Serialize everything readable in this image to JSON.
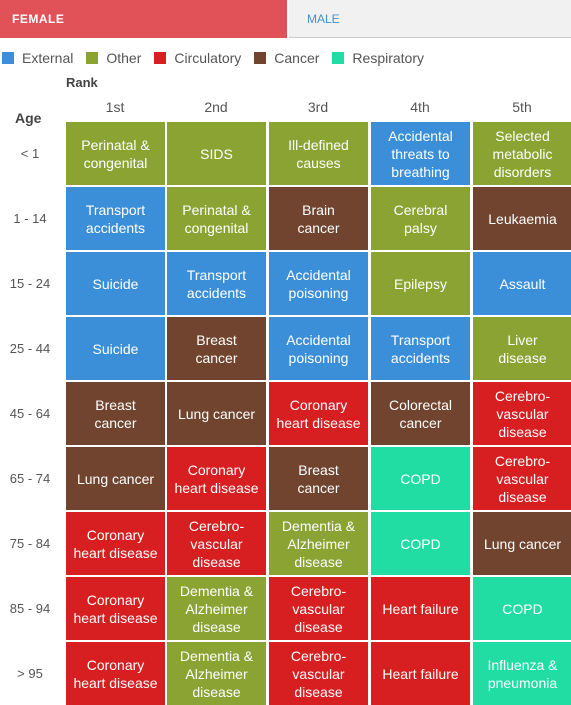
{
  "tabs": {
    "female": "FEMALE",
    "male": "MALE"
  },
  "colors": {
    "External": "#3b8fd9",
    "Other": "#8ba333",
    "Circulatory": "#d71e21",
    "Cancer": "#70442e",
    "Respiratory": "#22dda3"
  },
  "legend": [
    {
      "key": "External",
      "label": "External"
    },
    {
      "key": "Other",
      "label": "Other"
    },
    {
      "key": "Circulatory",
      "label": "Circulatory"
    },
    {
      "key": "Cancer",
      "label": "Cancer"
    },
    {
      "key": "Respiratory",
      "label": "Respiratory"
    }
  ],
  "chart_data": {
    "type": "table",
    "row_title": "Age",
    "col_title": "Rank",
    "columns": [
      "1st",
      "2nd",
      "3rd",
      "4th",
      "5th"
    ],
    "rows": [
      {
        "age": "< 1",
        "cells": [
          {
            "text": [
              "Perinatal &",
              "congenital"
            ],
            "cat": "Other"
          },
          {
            "text": [
              "SIDS"
            ],
            "cat": "Other"
          },
          {
            "text": [
              "Ill-defined",
              "causes"
            ],
            "cat": "Other"
          },
          {
            "text": [
              "Accidental",
              "threats to",
              "breathing"
            ],
            "cat": "External"
          },
          {
            "text": [
              "Selected",
              "metabolic",
              "disorders"
            ],
            "cat": "Other"
          }
        ]
      },
      {
        "age": "1 - 14",
        "cells": [
          {
            "text": [
              "Transport",
              "accidents"
            ],
            "cat": "External"
          },
          {
            "text": [
              "Perinatal &",
              "congenital"
            ],
            "cat": "Other"
          },
          {
            "text": [
              "Brain",
              "cancer"
            ],
            "cat": "Cancer"
          },
          {
            "text": [
              "Cerebral",
              "palsy"
            ],
            "cat": "Other"
          },
          {
            "text": [
              "Leukaemia"
            ],
            "cat": "Cancer"
          }
        ]
      },
      {
        "age": "15 - 24",
        "cells": [
          {
            "text": [
              "Suicide"
            ],
            "cat": "External"
          },
          {
            "text": [
              "Transport",
              "accidents"
            ],
            "cat": "External"
          },
          {
            "text": [
              "Accidental",
              "poisoning"
            ],
            "cat": "External"
          },
          {
            "text": [
              "Epilepsy"
            ],
            "cat": "Other"
          },
          {
            "text": [
              "Assault"
            ],
            "cat": "External"
          }
        ]
      },
      {
        "age": "25 - 44",
        "cells": [
          {
            "text": [
              "Suicide"
            ],
            "cat": "External"
          },
          {
            "text": [
              "Breast",
              "cancer"
            ],
            "cat": "Cancer"
          },
          {
            "text": [
              "Accidental",
              "poisoning"
            ],
            "cat": "External"
          },
          {
            "text": [
              "Transport",
              "accidents"
            ],
            "cat": "External"
          },
          {
            "text": [
              "Liver",
              "disease"
            ],
            "cat": "Other"
          }
        ]
      },
      {
        "age": "45 - 64",
        "cells": [
          {
            "text": [
              "Breast",
              "cancer"
            ],
            "cat": "Cancer"
          },
          {
            "text": [
              "Lung cancer"
            ],
            "cat": "Cancer"
          },
          {
            "text": [
              "Coronary",
              "heart disease"
            ],
            "cat": "Circulatory"
          },
          {
            "text": [
              "Colorectal",
              "cancer"
            ],
            "cat": "Cancer"
          },
          {
            "text": [
              "Cerebro-",
              "vascular",
              "disease"
            ],
            "cat": "Circulatory"
          }
        ]
      },
      {
        "age": "65 - 74",
        "cells": [
          {
            "text": [
              "Lung cancer"
            ],
            "cat": "Cancer"
          },
          {
            "text": [
              "Coronary",
              "heart disease"
            ],
            "cat": "Circulatory"
          },
          {
            "text": [
              "Breast",
              "cancer"
            ],
            "cat": "Cancer"
          },
          {
            "text": [
              "COPD"
            ],
            "cat": "Respiratory"
          },
          {
            "text": [
              "Cerebro-",
              "vascular",
              "disease"
            ],
            "cat": "Circulatory"
          }
        ]
      },
      {
        "age": "75 - 84",
        "cells": [
          {
            "text": [
              "Coronary",
              "heart disease"
            ],
            "cat": "Circulatory"
          },
          {
            "text": [
              "Cerebro-",
              "vascular",
              "disease"
            ],
            "cat": "Circulatory"
          },
          {
            "text": [
              "Dementia &",
              "Alzheimer",
              "disease"
            ],
            "cat": "Other"
          },
          {
            "text": [
              "COPD"
            ],
            "cat": "Respiratory"
          },
          {
            "text": [
              "Lung cancer"
            ],
            "cat": "Cancer"
          }
        ]
      },
      {
        "age": "85 - 94",
        "cells": [
          {
            "text": [
              "Coronary",
              "heart disease"
            ],
            "cat": "Circulatory"
          },
          {
            "text": [
              "Dementia &",
              "Alzheimer",
              "disease"
            ],
            "cat": "Other"
          },
          {
            "text": [
              "Cerebro-",
              "vascular",
              "disease"
            ],
            "cat": "Circulatory"
          },
          {
            "text": [
              "Heart failure"
            ],
            "cat": "Circulatory"
          },
          {
            "text": [
              "COPD"
            ],
            "cat": "Respiratory"
          }
        ]
      },
      {
        "age": "> 95",
        "cells": [
          {
            "text": [
              "Coronary",
              "heart disease"
            ],
            "cat": "Circulatory"
          },
          {
            "text": [
              "Dementia &",
              "Alzheimer",
              "disease"
            ],
            "cat": "Other"
          },
          {
            "text": [
              "Cerebro-",
              "vascular",
              "disease"
            ],
            "cat": "Circulatory"
          },
          {
            "text": [
              "Heart failure"
            ],
            "cat": "Circulatory"
          },
          {
            "text": [
              "Influenza &",
              "pneumonia"
            ],
            "cat": "Respiratory"
          }
        ]
      }
    ]
  }
}
